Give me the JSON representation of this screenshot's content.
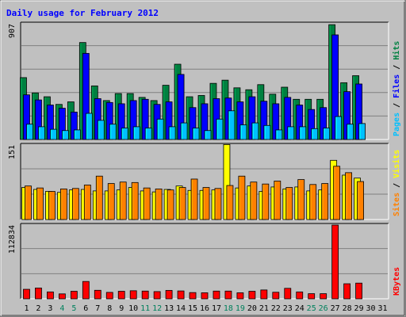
{
  "chart_data": {
    "type": "bar",
    "title": "Daily usage for February 2012",
    "colors": {
      "hits": "#008040",
      "files": "#0000ff",
      "pages": "#00c0ff",
      "visits": "#ffff00",
      "sites": "#ff8000",
      "kbytes": "#ff0000",
      "title": "#0000ff",
      "weekend_label": "#00805c"
    },
    "x": [
      "1",
      "2",
      "3",
      "4",
      "5",
      "6",
      "7",
      "8",
      "9",
      "10",
      "11",
      "12",
      "13",
      "14",
      "15",
      "16",
      "17",
      "18",
      "19",
      "20",
      "21",
      "22",
      "23",
      "24",
      "25",
      "26",
      "27",
      "28",
      "29",
      "30",
      "31"
    ],
    "weekend_days": [
      4,
      5,
      11,
      12,
      18,
      19,
      25,
      26
    ],
    "panels": [
      {
        "id": "traffic",
        "ymax": 907,
        "ymax_label": "907",
        "legend": [
          "Pages",
          "Files",
          "Hits"
        ],
        "series": [
          {
            "name": "Hits",
            "values": [
              485,
              365,
              335,
              275,
              295,
              760,
              420,
              305,
              360,
              360,
              330,
              305,
              425,
              590,
              335,
              345,
              440,
              465,
              405,
              390,
              430,
              355,
              410,
              315,
              315,
              315,
              900,
              445,
              500,
              0,
              0
            ]
          },
          {
            "name": "Files",
            "values": [
              350,
              310,
              270,
              245,
              215,
              675,
              320,
              290,
              280,
              305,
              315,
              275,
              295,
              510,
              250,
              280,
              320,
              325,
              295,
              335,
              300,
              280,
              330,
              270,
              235,
              250,
              820,
              375,
              435,
              0,
              0
            ]
          },
          {
            "name": "Pages",
            "values": [
              120,
              100,
              80,
              70,
              75,
              205,
              150,
              120,
              90,
              100,
              90,
              160,
              100,
              130,
              90,
              70,
              160,
              225,
              115,
              130,
              110,
              75,
              100,
              100,
              85,
              90,
              180,
              120,
              125,
              0,
              0
            ]
          }
        ]
      },
      {
        "id": "visits",
        "ymax": 151,
        "ymax_label": "151",
        "legend": [
          "Sites",
          "Visits"
        ],
        "series": [
          {
            "name": "Visits",
            "values": [
              65,
              61,
              57,
              55,
              60,
              61,
              58,
              58,
              60,
              65,
              58,
              56,
              61,
              68,
              59,
              59,
              60,
              152,
              64,
              68,
              57,
              66,
              62,
              66,
              58,
              60,
              120,
              90,
              84,
              0,
              0
            ]
          },
          {
            "name": "Sites",
            "values": [
              68,
              64,
              57,
              62,
              63,
              70,
              88,
              73,
              76,
              75,
              64,
              62,
              60,
              65,
              82,
              65,
              63,
              69,
              88,
              76,
              72,
              78,
              65,
              81,
              71,
              73,
              108,
              95,
              77,
              0,
              0
            ]
          }
        ]
      },
      {
        "id": "kbytes",
        "ymax": 112834,
        "ymax_label": "112834",
        "legend": [
          "KBytes"
        ],
        "series": [
          {
            "name": "KBytes",
            "values": [
              14500,
              16500,
              10500,
              7500,
              11500,
              26500,
              13000,
              9800,
              11500,
              12300,
              11800,
              11000,
              12800,
              12000,
              9500,
              9200,
              11800,
              11800,
              9200,
              11500,
              13500,
              10000,
              16000,
              10500,
              7800,
              7800,
              112834,
              23000,
              24000,
              0,
              0
            ]
          }
        ]
      }
    ]
  }
}
